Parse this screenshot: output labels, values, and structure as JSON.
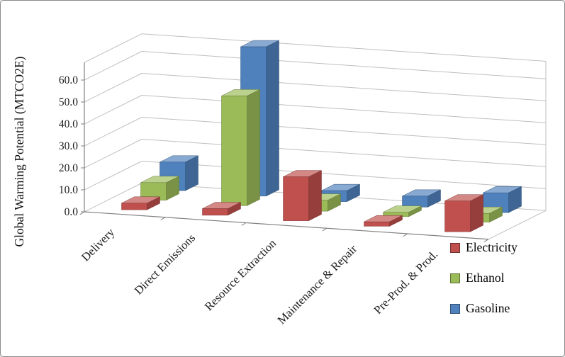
{
  "window": {
    "background": "#ffffff",
    "border_color": "#8a8a8a"
  },
  "chart_data": {
    "type": "bar",
    "variant": "3d-column",
    "title": "",
    "xlabel": "",
    "ylabel": "Global Warming Potential (MTCO2E)",
    "categories": [
      "Delivery",
      "Direct Emissions",
      "Resource Extraction",
      "Maintenance & Repair",
      "Pre-Prod. & Prod."
    ],
    "series": [
      {
        "name": "Electricity",
        "color": "#C0504D",
        "values": [
          3.0,
          3.0,
          20.0,
          2.0,
          14.0
        ]
      },
      {
        "name": "Ethanol",
        "color": "#9BBB59",
        "values": [
          8.0,
          50.0,
          5.0,
          2.0,
          4.0
        ]
      },
      {
        "name": "Gasoline",
        "color": "#4F81BD",
        "values": [
          13.0,
          68.0,
          5.0,
          5.0,
          9.0
        ]
      }
    ],
    "ylim": [
      0,
      60
    ],
    "ytick_step": 10,
    "ytick_labels": [
      "0.0",
      "10.0",
      "20.0",
      "30.0",
      "40.0",
      "50.0",
      "60.0"
    ],
    "grid": true,
    "legend_position": "right",
    "colors": {
      "gridline": "#bfbfbf",
      "axis_line": "#808080",
      "text": "#1a1a1a"
    }
  }
}
